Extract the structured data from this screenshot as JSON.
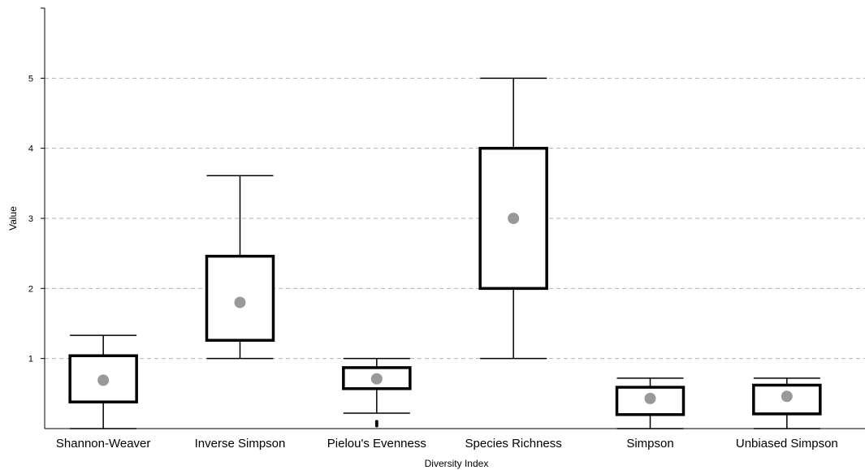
{
  "chart_data": {
    "type": "box",
    "title": "",
    "xlabel": "Diversity Index",
    "ylabel": "Value",
    "ylim": [
      0,
      6
    ],
    "yticks": [
      "1",
      "2",
      "3",
      "4",
      "5"
    ],
    "grid": "horizontal-dashed",
    "categories": [
      "Shannon-Weaver",
      "Inverse Simpson",
      "Pielou's Evenness",
      "Species Richness",
      "Simpson",
      "Unbiased Simpson"
    ],
    "boxes": [
      {
        "whisker_low": 0.0,
        "q1": 0.38,
        "q3": 1.04,
        "whisker_high": 1.33,
        "mean": 0.69,
        "outliers": []
      },
      {
        "whisker_low": 1.0,
        "q1": 1.26,
        "q3": 2.46,
        "whisker_high": 3.61,
        "mean": 1.8,
        "outliers": []
      },
      {
        "whisker_low": 0.22,
        "q1": 0.57,
        "q3": 0.87,
        "whisker_high": 1.0,
        "mean": 0.71,
        "outliers": [
          0.04,
          0.07,
          0.1
        ]
      },
      {
        "whisker_low": 1.0,
        "q1": 2.0,
        "q3": 4.0,
        "whisker_high": 5.0,
        "mean": 3.0,
        "outliers": []
      },
      {
        "whisker_low": 0.0,
        "q1": 0.2,
        "q3": 0.59,
        "whisker_high": 0.72,
        "mean": 0.43,
        "outliers": []
      },
      {
        "whisker_low": 0.0,
        "q1": 0.21,
        "q3": 0.62,
        "whisker_high": 0.72,
        "mean": 0.46,
        "outliers": []
      }
    ],
    "colors": {
      "box": "#000000",
      "mean_marker": "#999999",
      "grid": "#b3b3b3",
      "axis": "#000000"
    }
  }
}
